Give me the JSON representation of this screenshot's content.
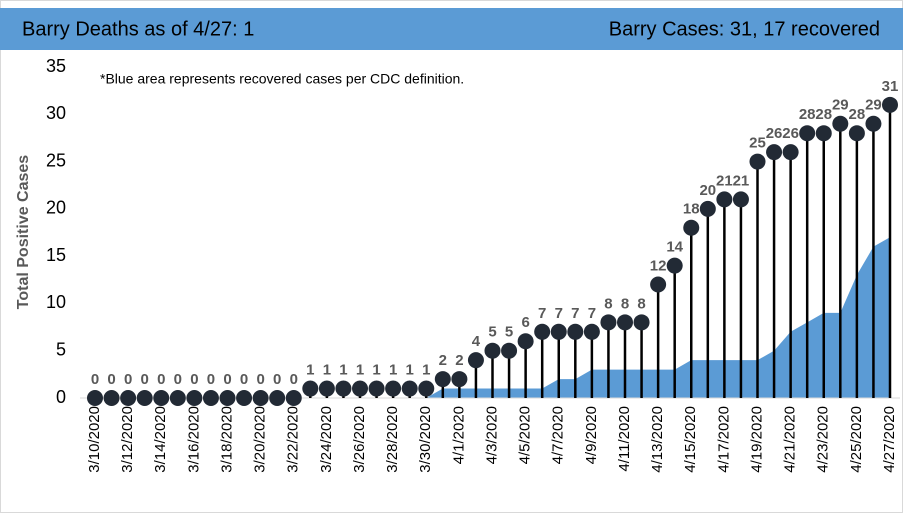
{
  "header": {
    "left": "Barry Deaths as of 4/27: 1",
    "right": "Barry Cases: 31,  17 recovered"
  },
  "chart_data": {
    "type": "lollipop",
    "annotation": "*Blue area represents recovered cases per CDC definition.",
    "y_label": "Total Positive Cases",
    "categories": [
      "3/10/2020",
      null,
      "3/12/2020",
      null,
      "3/14/2020",
      null,
      "3/16/2020",
      null,
      "3/18/2020",
      null,
      "3/20/2020",
      null,
      "3/22/2020",
      null,
      "3/24/2020",
      null,
      "3/26/2020",
      null,
      "3/28/2020",
      null,
      "3/30/2020",
      null,
      "4/1/2020",
      null,
      "4/3/2020",
      null,
      "4/5/2020",
      null,
      "4/7/2020",
      null,
      "4/9/2020",
      null,
      "4/11/2020",
      null,
      "4/13/2020",
      null,
      "4/15/2020",
      null,
      "4/17/2020",
      null,
      "4/19/2020",
      null,
      "4/21/2020",
      null,
      "4/23/2020",
      null,
      "4/25/2020",
      null,
      "4/27/2020"
    ],
    "values": [
      0,
      0,
      0,
      0,
      0,
      0,
      0,
      0,
      0,
      0,
      0,
      0,
      0,
      1,
      1,
      1,
      1,
      1,
      1,
      1,
      1,
      2,
      2,
      4,
      5,
      5,
      6,
      7,
      7,
      7,
      7,
      8,
      8,
      8,
      12,
      14,
      18,
      20,
      21,
      21,
      25,
      26,
      26,
      28,
      28,
      29,
      28,
      29,
      31
    ],
    "color": "#222a35",
    "recovered_values": [
      0,
      0,
      0,
      0,
      0,
      0,
      0,
      0,
      0,
      0,
      0,
      0,
      0,
      0,
      0,
      0,
      0,
      0,
      0,
      0,
      0,
      1,
      1,
      1,
      1,
      1,
      1,
      1,
      2,
      2,
      3,
      3,
      3,
      3,
      3,
      3,
      4,
      4,
      4,
      4,
      4,
      5,
      7,
      8,
      9,
      9,
      13,
      16,
      17
    ],
    "area_color": "#5b9bd5",
    "ylim": [
      0,
      35
    ],
    "yticks": [
      0,
      5,
      10,
      15,
      20,
      25,
      30,
      35
    ],
    "grid": false
  }
}
